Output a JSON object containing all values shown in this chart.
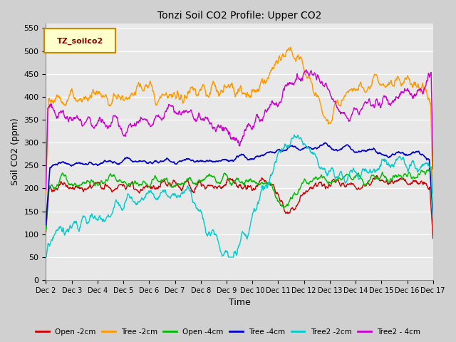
{
  "title": "Tonzi Soil CO2 Profile: Upper CO2",
  "xlabel": "Time",
  "ylabel": "Soil CO2 (ppm)",
  "ylim": [
    0,
    560
  ],
  "yticks": [
    0,
    50,
    100,
    150,
    200,
    250,
    300,
    350,
    400,
    450,
    500,
    550
  ],
  "fig_bg": "#d0d0d0",
  "plot_bg": "#e8e8e8",
  "grid_color": "#ffffff",
  "legend_label": "TZ_soilco2",
  "legend_text_color": "#8b0000",
  "legend_box_facecolor": "#ffffcc",
  "legend_box_edgecolor": "#cc8800",
  "series": [
    {
      "label": "Open -2cm",
      "color": "#cc0000",
      "lw": 1.0
    },
    {
      "label": "Tree -2cm",
      "color": "#ff9900",
      "lw": 1.0
    },
    {
      "label": "Open -4cm",
      "color": "#00bb00",
      "lw": 1.0
    },
    {
      "label": "Tree -4cm",
      "color": "#0000cc",
      "lw": 1.2
    },
    {
      "label": "Tree2 -2cm",
      "color": "#00cccc",
      "lw": 1.0
    },
    {
      "label": "Tree2 - 4cm",
      "color": "#cc00cc",
      "lw": 1.0
    }
  ],
  "x_tick_labels": [
    "Dec 2",
    "Dec 3",
    "Dec 4",
    "Dec 5",
    "Dec 6",
    "Dec 7",
    "Dec 8",
    "Dec 9",
    "Dec 10",
    "Dec 11",
    "Dec 12",
    "Dec 13",
    "Dec 14",
    "Dec 15",
    "Dec 16",
    "Dec 17"
  ],
  "n_points": 1440,
  "seed": 42
}
